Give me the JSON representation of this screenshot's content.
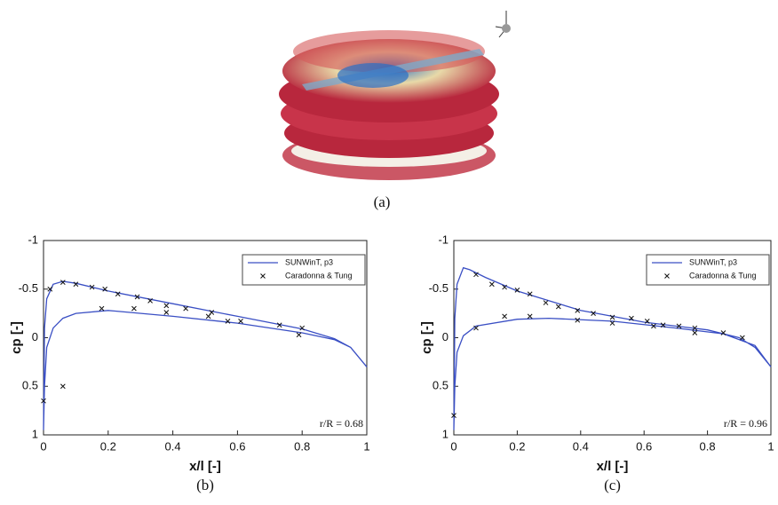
{
  "figure_a": {
    "caption": "(a)"
  },
  "chart_data": [
    {
      "type": "line",
      "caption": "(b)",
      "x_label": "x/l [-]",
      "y_label": "cp [-]",
      "annotation": "r/R = 0.68",
      "xlim": [
        0,
        1
      ],
      "xticks": [
        0,
        0.2,
        0.4,
        0.6,
        0.8,
        1
      ],
      "ylim": [
        -1,
        1
      ],
      "yticks": [
        -1,
        -0.5,
        0,
        0.5,
        1
      ],
      "y_inverted": true,
      "legend": "upper right",
      "series": [
        {
          "name": "SUNWinT, p3",
          "color": "#3a4fc4",
          "kind": "line",
          "x": [
            1,
            0.95,
            0.9,
            0.8,
            0.6,
            0.4,
            0.2,
            0.1,
            0.06,
            0.03,
            0.01,
            0.003,
            0,
            0.003,
            0.01,
            0.03,
            0.06,
            0.1,
            0.2,
            0.4,
            0.6,
            0.8,
            0.9,
            0.95,
            1
          ],
          "values": [
            0.3,
            0.1,
            0.01,
            -0.09,
            -0.22,
            -0.35,
            -0.48,
            -0.56,
            -0.58,
            -0.55,
            -0.4,
            -0.1,
            0.95,
            0.5,
            0.1,
            -0.1,
            -0.2,
            -0.25,
            -0.28,
            -0.22,
            -0.15,
            -0.05,
            0.02,
            0.1,
            0.3
          ]
        },
        {
          "name": "Caradonna & Tung",
          "color": "#111111",
          "kind": "scatter",
          "x": [
            0,
            0.02,
            0.06,
            0.1,
            0.15,
            0.19,
            0.23,
            0.29,
            0.33,
            0.38,
            0.44,
            0.52,
            0.18,
            0.28,
            0.38,
            0.51,
            0.57,
            0.61,
            0.73,
            0.8,
            0.79,
            0.06
          ],
          "values": [
            0.65,
            -0.5,
            -0.57,
            -0.55,
            -0.52,
            -0.5,
            -0.45,
            -0.42,
            -0.38,
            -0.33,
            -0.3,
            -0.26,
            -0.3,
            -0.3,
            -0.26,
            -0.22,
            -0.17,
            -0.17,
            -0.13,
            -0.1,
            -0.03,
            0.5
          ]
        }
      ]
    },
    {
      "type": "line",
      "caption": "(c)",
      "x_label": "x/l [-]",
      "y_label": "cp [-]",
      "annotation": "r/R = 0.96",
      "xlim": [
        0,
        1
      ],
      "xticks": [
        0,
        0.2,
        0.4,
        0.6,
        0.8,
        1
      ],
      "ylim": [
        -1,
        1
      ],
      "yticks": [
        -1,
        -0.5,
        0,
        0.5,
        1
      ],
      "y_inverted": true,
      "legend": "upper right",
      "series": [
        {
          "name": "SUNWinT, p3",
          "color": "#3a4fc4",
          "kind": "line",
          "x": [
            1,
            0.95,
            0.9,
            0.8,
            0.6,
            0.4,
            0.2,
            0.1,
            0.05,
            0.03,
            0.01,
            0.003,
            0,
            0.003,
            0.01,
            0.03,
            0.07,
            0.2,
            0.3,
            0.5,
            0.7,
            0.85,
            0.95,
            1
          ],
          "values": [
            0.3,
            0.1,
            0.0,
            -0.08,
            -0.16,
            -0.28,
            -0.48,
            -0.62,
            -0.7,
            -0.72,
            -0.55,
            -0.2,
            0.95,
            0.5,
            0.15,
            -0.02,
            -0.12,
            -0.19,
            -0.2,
            -0.17,
            -0.1,
            -0.04,
            0.08,
            0.3
          ]
        },
        {
          "name": "Caradonna & Tung",
          "color": "#111111",
          "kind": "scatter",
          "x": [
            0,
            0.07,
            0.16,
            0.24,
            0.39,
            0.5,
            0.63,
            0.76,
            0.85,
            0.91,
            0.07,
            0.12,
            0.16,
            0.2,
            0.24,
            0.29,
            0.33,
            0.39,
            0.44,
            0.5,
            0.56,
            0.61,
            0.66,
            0.71,
            0.76
          ],
          "values": [
            0.8,
            -0.1,
            -0.22,
            -0.22,
            -0.18,
            -0.15,
            -0.12,
            -0.05,
            -0.05,
            0.0,
            -0.65,
            -0.55,
            -0.52,
            -0.49,
            -0.45,
            -0.36,
            -0.32,
            -0.28,
            -0.25,
            -0.21,
            -0.2,
            -0.17,
            -0.13,
            -0.12,
            -0.1
          ]
        }
      ]
    }
  ]
}
